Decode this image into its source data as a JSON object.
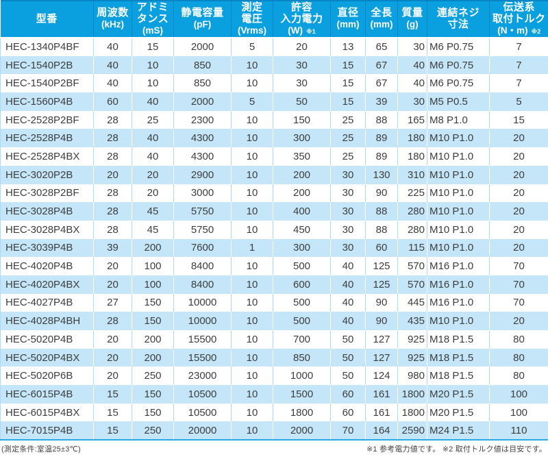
{
  "colors": {
    "header_bg": "#0AA0DF",
    "header_text": "#FFFFFF",
    "header_divider": "#0A86C6",
    "stripe_bg": "#C4E6F8",
    "row_divider": "#A9DCF5",
    "table_border_bottom": "#2BA8E1",
    "text": "#3D3D3D",
    "footnote_text": "#444444"
  },
  "chart_data": {
    "type": "table",
    "title": "",
    "columns": [
      {
        "key": "model",
        "lines": [
          "型番"
        ],
        "unit": "",
        "note": "",
        "width": 136,
        "align": "left"
      },
      {
        "key": "frequency",
        "lines": [
          "周波数"
        ],
        "unit": "(kHz)",
        "note": "",
        "width": 56,
        "align": "center"
      },
      {
        "key": "admittance",
        "lines": [
          "アドミ",
          "タンス"
        ],
        "unit": "(mS)",
        "note": "",
        "width": 61,
        "align": "center"
      },
      {
        "key": "capacitance",
        "lines": [
          "静電容量"
        ],
        "unit": "(pF)",
        "note": "",
        "width": 84,
        "align": "center"
      },
      {
        "key": "voltage",
        "lines": [
          "測定",
          "電圧"
        ],
        "unit": "(Vrms)",
        "note": "",
        "width": 61,
        "align": "center"
      },
      {
        "key": "power",
        "lines": [
          "許容",
          "入力電力"
        ],
        "unit": "(W)",
        "note": "※1",
        "width": 84,
        "align": "center"
      },
      {
        "key": "diameter",
        "lines": [
          "直径"
        ],
        "unit": "(mm)",
        "note": "",
        "width": 51,
        "align": "center"
      },
      {
        "key": "length",
        "lines": [
          "全長"
        ],
        "unit": "(mm)",
        "note": "",
        "width": 47,
        "align": "center"
      },
      {
        "key": "mass",
        "lines": [
          "質量"
        ],
        "unit": "(g)",
        "note": "",
        "width": 43,
        "align": "right"
      },
      {
        "key": "screw",
        "lines": [
          "連結ネジ",
          "寸法"
        ],
        "unit": "",
        "note": "",
        "width": 91,
        "align": "left-tight"
      },
      {
        "key": "torque",
        "lines": [
          "伝送系",
          "取付トルク"
        ],
        "unit": "(N・m)",
        "note": "※2",
        "width": 86,
        "align": "center"
      }
    ],
    "rows": [
      [
        "HEC-1340P4BF",
        "40",
        "15",
        "2000",
        "5",
        "20",
        "13",
        "65",
        "30",
        "M6 P0.75",
        "7"
      ],
      [
        "HEC-1540P2B",
        "40",
        "10",
        "850",
        "10",
        "30",
        "15",
        "67",
        "40",
        "M6 P0.75",
        "7"
      ],
      [
        "HEC-1540P2BF",
        "40",
        "10",
        "850",
        "10",
        "30",
        "15",
        "67",
        "40",
        "M6 P0.75",
        "7"
      ],
      [
        "HEC-1560P4B",
        "60",
        "40",
        "2000",
        "5",
        "50",
        "15",
        "39",
        "30",
        "M5 P0.5",
        "5"
      ],
      [
        "HEC-2528P2BF",
        "28",
        "25",
        "2300",
        "10",
        "150",
        "25",
        "88",
        "165",
        "M8 P1.0",
        "15"
      ],
      [
        "HEC-2528P4B",
        "28",
        "40",
        "4300",
        "10",
        "300",
        "25",
        "89",
        "180",
        "M10 P1.0",
        "20"
      ],
      [
        "HEC-2528P4BX",
        "28",
        "40",
        "4300",
        "10",
        "350",
        "25",
        "89",
        "180",
        "M10 P1.0",
        "20"
      ],
      [
        "HEC-3020P2B",
        "20",
        "20",
        "2900",
        "10",
        "200",
        "30",
        "130",
        "310",
        "M10 P1.0",
        "20"
      ],
      [
        "HEC-3028P2BF",
        "28",
        "20",
        "3000",
        "10",
        "200",
        "30",
        "90",
        "225",
        "M10 P1.0",
        "20"
      ],
      [
        "HEC-3028P4B",
        "28",
        "45",
        "5750",
        "10",
        "400",
        "30",
        "88",
        "280",
        "M10 P1.0",
        "20"
      ],
      [
        "HEC-3028P4BX",
        "28",
        "45",
        "5750",
        "10",
        "450",
        "30",
        "88",
        "280",
        "M10 P1.0",
        "20"
      ],
      [
        "HEC-3039P4B",
        "39",
        "200",
        "7600",
        "1",
        "300",
        "30",
        "60",
        "115",
        "M10 P1.0",
        "20"
      ],
      [
        "HEC-4020P4B",
        "20",
        "100",
        "8400",
        "10",
        "500",
        "40",
        "125",
        "570",
        "M16 P1.0",
        "70"
      ],
      [
        "HEC-4020P4BX",
        "20",
        "100",
        "8400",
        "10",
        "600",
        "40",
        "125",
        "570",
        "M16 P1.0",
        "70"
      ],
      [
        "HEC-4027P4B",
        "27",
        "150",
        "10000",
        "10",
        "500",
        "40",
        "90",
        "445",
        "M16 P1.0",
        "70"
      ],
      [
        "HEC-4028P4BH",
        "28",
        "150",
        "10000",
        "10",
        "500",
        "40",
        "90",
        "435",
        "M10 P1.0",
        "20"
      ],
      [
        "HEC-5020P4B",
        "20",
        "200",
        "15500",
        "10",
        "700",
        "50",
        "127",
        "925",
        "M18 P1.5",
        "80"
      ],
      [
        "HEC-5020P4BX",
        "20",
        "200",
        "15500",
        "10",
        "850",
        "50",
        "127",
        "925",
        "M18 P1.5",
        "80"
      ],
      [
        "HEC-5020P6B",
        "20",
        "250",
        "23000",
        "10",
        "1000",
        "50",
        "124",
        "980",
        "M18 P1.5",
        "80"
      ],
      [
        "HEC-6015P4B",
        "15",
        "150",
        "10500",
        "10",
        "1500",
        "60",
        "161",
        "1800",
        "M20 P1.5",
        "100"
      ],
      [
        "HEC-6015P4BX",
        "15",
        "150",
        "10500",
        "10",
        "1800",
        "60",
        "161",
        "1800",
        "M20 P1.5",
        "100"
      ],
      [
        "HEC-7015P4B",
        "15",
        "250",
        "20000",
        "10",
        "2000",
        "70",
        "164",
        "2590",
        "M24 P1.5",
        "110"
      ]
    ]
  },
  "footer": {
    "left": "(測定条件:室温25±3℃)",
    "right": "※1 参考電力値です。 ※2 取付トルク値は目安です。"
  }
}
